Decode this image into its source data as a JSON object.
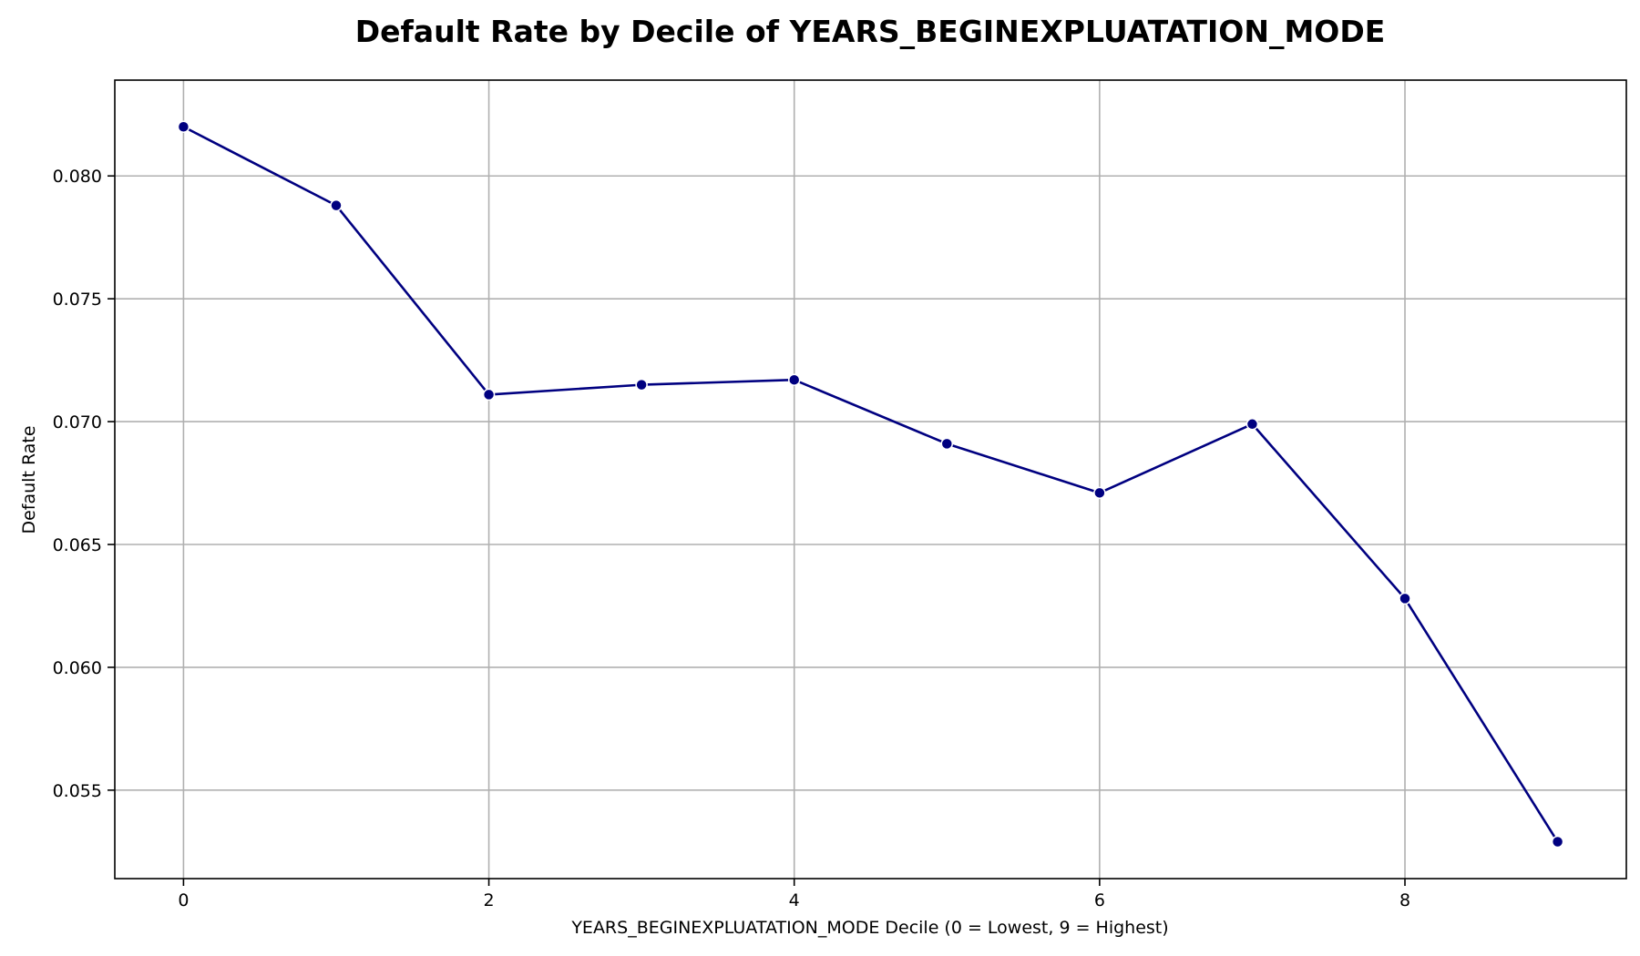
{
  "chart_data": {
    "type": "line",
    "title": "Default Rate by Decile of YEARS_BEGINEXPLUATATION_MODE",
    "xlabel": "YEARS_BEGINEXPLUATATION_MODE Decile (0 = Lowest, 9 = Highest)",
    "ylabel": "Default Rate",
    "x": [
      0,
      1,
      2,
      3,
      4,
      5,
      6,
      7,
      8,
      9
    ],
    "values": [
      0.082,
      0.0788,
      0.0711,
      0.0715,
      0.0717,
      0.0691,
      0.0671,
      0.0699,
      0.0628,
      0.0529
    ],
    "xlim": [
      -0.45,
      9.45
    ],
    "ylim": [
      0.0514,
      0.0839
    ],
    "xticks": [
      0,
      2,
      4,
      6,
      8
    ],
    "xtick_labels": [
      "0",
      "2",
      "4",
      "6",
      "8"
    ],
    "yticks": [
      0.055,
      0.06,
      0.065,
      0.07,
      0.075,
      0.08
    ],
    "ytick_labels": [
      "0.055",
      "0.060",
      "0.065",
      "0.070",
      "0.075",
      "0.080"
    ],
    "grid": true,
    "line_color": "#000080",
    "marker_color": "#000080"
  }
}
